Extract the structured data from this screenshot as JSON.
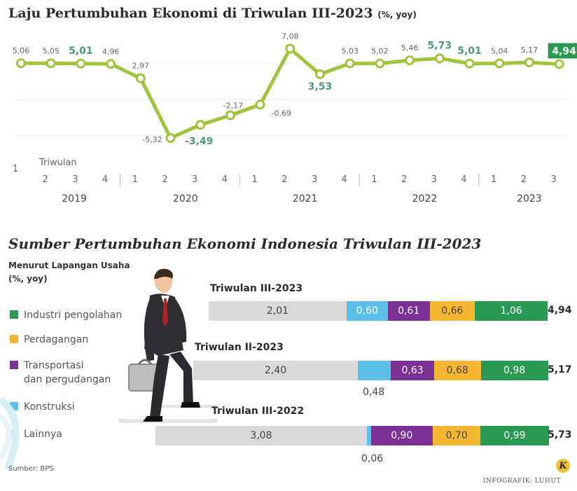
{
  "line_chart": {
    "title": "Laju Pertumbuhan Ekonomi di Triwulan III-2023",
    "title_unit": "(%, yoy)",
    "quarter_caption": "Triwulan",
    "highlighted_labels": [
      "5,01",
      "-3,49",
      "3,53",
      "5,73"
    ],
    "highlighted_label_color": "#4a9a7a",
    "line_color": "#9fc43a",
    "final_badge_color": "#2a9a52"
  },
  "chart_data": [
    {
      "type": "line",
      "title": "Laju Pertumbuhan Ekonomi di Triwulan III-2023",
      "ylabel": "%, yoy",
      "x": [
        "1-2019",
        "2-2019",
        "3-2019",
        "4-2019",
        "1-2020",
        "2-2020",
        "3-2020",
        "4-2020",
        "1-2021",
        "2-2021",
        "3-2021",
        "4-2021",
        "1-2022",
        "2-2022",
        "3-2022",
        "4-2022",
        "1-2023",
        "2-2023",
        "3-2023"
      ],
      "quarters": [
        "1",
        "2",
        "3",
        "4",
        "1",
        "2",
        "3",
        "4",
        "1",
        "2",
        "3",
        "4",
        "1",
        "2",
        "3",
        "4",
        "1",
        "2",
        "3"
      ],
      "years": [
        {
          "label": "2019",
          "from": 0,
          "to": 3
        },
        {
          "label": "2020",
          "from": 4,
          "to": 7
        },
        {
          "label": "2021",
          "from": 8,
          "to": 11
        },
        {
          "label": "2022",
          "from": 12,
          "to": 15
        },
        {
          "label": "2023",
          "from": 16,
          "to": 18
        }
      ],
      "values": [
        5.06,
        5.05,
        5.01,
        4.96,
        2.97,
        -5.32,
        -3.49,
        -2.17,
        -0.69,
        7.08,
        3.53,
        5.03,
        5.02,
        5.46,
        5.73,
        5.01,
        5.04,
        5.17,
        4.94
      ],
      "labels": [
        "5,06",
        "5,05",
        "5,01",
        "4,96",
        "2,97",
        "-5,32",
        "-3,49",
        "-2,17",
        "-0,69",
        "7,08",
        "3,53",
        "5,03",
        "5,02",
        "5,46",
        "5,73",
        "5,01",
        "5,04",
        "5,17",
        "4,94"
      ],
      "ylim": [
        -6,
        8
      ]
    },
    {
      "type": "bar",
      "stacked": true,
      "title": "Sumber Pertumbuhan Ekonomi Indonesia Triwulan III-2023",
      "subtitle": "Menurut Lapangan Usaha",
      "unit": "(%, yoy)",
      "series_order": [
        "Lainnya",
        "Konstruksi",
        "Transportasi dan pergudangan",
        "Perdagangan",
        "Industri pengolahan"
      ],
      "legend": [
        {
          "name": "Industri pengolahan",
          "color": "#2a9a52"
        },
        {
          "name": "Perdagangan",
          "color": "#f5b731"
        },
        {
          "name": "Transportasi dan pergudangan",
          "line1": "Transportasi",
          "line2": "dan pergudangan",
          "color": "#7b3294"
        },
        {
          "name": "Konstruksi",
          "color": "#5bc0e8"
        },
        {
          "name": "Lainnya",
          "color": "#d9d9d9"
        }
      ],
      "categories": [
        "Triwulan III-2023",
        "Triwulan II-2023",
        "Triwulan III-2022"
      ],
      "bars": [
        {
          "category": "Triwulan III-2023",
          "values": [
            2.01,
            0.6,
            0.61,
            0.66,
            1.06
          ],
          "labels": [
            "2,01",
            "0,60",
            "0,61",
            "0,66",
            "1,06"
          ],
          "total": "4,94",
          "outside_note": ""
        },
        {
          "category": "Triwulan II-2023",
          "values": [
            2.4,
            0.48,
            0.63,
            0.68,
            0.98
          ],
          "labels": [
            "2,40",
            "",
            "0,63",
            "0,68",
            "0,98"
          ],
          "total": "5,17",
          "outside_note": "0,48"
        },
        {
          "category": "Triwulan III-2022",
          "values": [
            3.08,
            0.06,
            0.9,
            0.7,
            0.99
          ],
          "labels": [
            "3,08",
            "",
            "0,90",
            "0,70",
            "0,99"
          ],
          "total": "5,73",
          "outside_note": "0,06"
        }
      ]
    }
  ],
  "footer": {
    "source": "Sumber: BPS",
    "logo_letter": "K",
    "credit": "INFOGRAFIK: LUHUT"
  }
}
